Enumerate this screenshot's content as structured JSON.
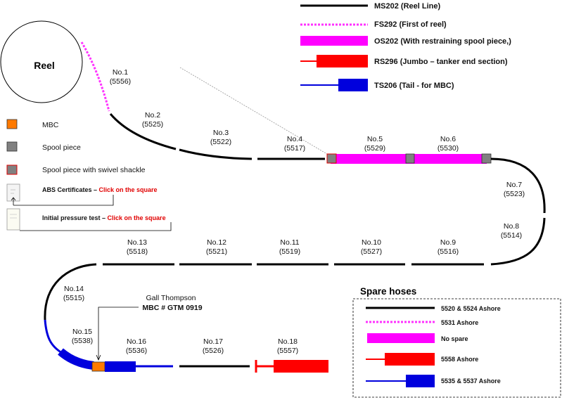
{
  "reel": {
    "label": "Reel"
  },
  "legend": [
    {
      "code": "MS202",
      "desc": "(Reel Line)"
    },
    {
      "code": "FS292",
      "desc": "(First of reel)"
    },
    {
      "code": "OS202",
      "desc": "(With restraining spool piece,)"
    },
    {
      "code": "RS296",
      "desc": "(Jumbo – tanker end section)"
    },
    {
      "code": "TS206",
      "desc": "(Tail - for MBC)"
    }
  ],
  "key": {
    "mbc": "MBC",
    "spool": "Spool piece",
    "spool_swivel": "Spool piece with swivel shackle",
    "abs_label": "ABS Certificates – ",
    "abs_action": "Click on the square",
    "pressure_label": "Initial pressure test – ",
    "pressure_action": "Click on the square"
  },
  "hoses": [
    {
      "no": "No.1",
      "serial": "(5556)"
    },
    {
      "no": "No.2",
      "serial": "(5525)"
    },
    {
      "no": "No.3",
      "serial": "(5522)"
    },
    {
      "no": "No.4",
      "serial": "(5517)"
    },
    {
      "no": "No.5",
      "serial": "(5529)"
    },
    {
      "no": "No.6",
      "serial": "(5530)"
    },
    {
      "no": "No.7",
      "serial": "(5523)"
    },
    {
      "no": "No.8",
      "serial": "(5514)"
    },
    {
      "no": "No.9",
      "serial": "(5516)"
    },
    {
      "no": "No.10",
      "serial": "(5527)"
    },
    {
      "no": "No.11",
      "serial": "(5519)"
    },
    {
      "no": "No.12",
      "serial": "(5521)"
    },
    {
      "no": "No.13",
      "serial": "(5518)"
    },
    {
      "no": "No.14",
      "serial": "(5515)"
    },
    {
      "no": "No.15",
      "serial": "(5538)"
    },
    {
      "no": "No.16",
      "serial": "(5536)"
    },
    {
      "no": "No.17",
      "serial": "(5526)"
    },
    {
      "no": "No.18",
      "serial": "(5557)"
    }
  ],
  "mbc_note": {
    "name": "Gall Thompson",
    "id": "MBC # GTM 0919"
  },
  "spare": {
    "title": "Spare hoses",
    "items": [
      "5520 & 5524 Ashore",
      "5531 Ashore",
      "No spare",
      "5558 Ashore",
      "5535 & 5537 Ashore"
    ]
  },
  "colors": {
    "reel_line": "#000000",
    "first_of_reel": "#ff33ff",
    "restraining": "#ff00ff",
    "jumbo": "#ff0000",
    "tail": "#0000dd",
    "mbc": "#ff7a00",
    "spool": "#808080"
  }
}
